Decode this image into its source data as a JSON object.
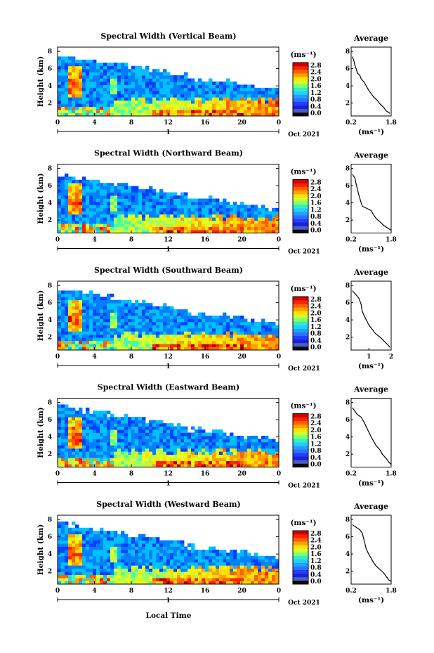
{
  "x_axis_label": "Local Time",
  "panels": [
    {
      "title": "Spectral Width (Vertical Beam)",
      "avg_xticks": [
        "0.2",
        "1.8"
      ],
      "avg_xrange": [
        0.2,
        1.8
      ],
      "avg_profile": [
        [
          0.25,
          7.4
        ],
        [
          0.3,
          7.0
        ],
        [
          0.35,
          6.4
        ],
        [
          0.4,
          6.0
        ],
        [
          0.45,
          5.5
        ],
        [
          0.55,
          5.2
        ],
        [
          0.6,
          4.8
        ],
        [
          0.7,
          4.5
        ],
        [
          0.8,
          4.0
        ],
        [
          0.9,
          3.5
        ],
        [
          1.0,
          3.1
        ],
        [
          1.1,
          2.7
        ],
        [
          1.25,
          2.3
        ],
        [
          1.35,
          1.9
        ],
        [
          1.5,
          1.5
        ],
        [
          1.6,
          1.1
        ],
        [
          1.75,
          0.8
        ]
      ]
    },
    {
      "title": "Spectral Width (Northward Beam)",
      "avg_xticks": [
        "0.2",
        "1.8"
      ],
      "avg_xrange": [
        0.2,
        1.8
      ],
      "avg_profile": [
        [
          0.25,
          7.3
        ],
        [
          0.35,
          6.9
        ],
        [
          0.4,
          6.2
        ],
        [
          0.45,
          5.6
        ],
        [
          0.5,
          5.0
        ],
        [
          0.55,
          4.5
        ],
        [
          0.6,
          4.0
        ],
        [
          0.65,
          3.6
        ],
        [
          0.8,
          3.4
        ],
        [
          1.0,
          3.1
        ],
        [
          1.1,
          2.6
        ],
        [
          1.2,
          2.2
        ],
        [
          1.35,
          1.8
        ],
        [
          1.5,
          1.4
        ],
        [
          1.7,
          1.0
        ],
        [
          1.8,
          0.8
        ]
      ]
    },
    {
      "title": "Spectral Width (Southward Beam)",
      "avg_xticks": [
        "1",
        "2"
      ],
      "avg_xrange": [
        0.2,
        2.0
      ],
      "avg_profile": [
        [
          0.25,
          7.4
        ],
        [
          0.4,
          7.0
        ],
        [
          0.55,
          6.5
        ],
        [
          0.65,
          5.8
        ],
        [
          0.7,
          5.0
        ],
        [
          0.8,
          4.4
        ],
        [
          0.9,
          3.9
        ],
        [
          1.0,
          3.4
        ],
        [
          1.15,
          2.9
        ],
        [
          1.3,
          2.4
        ],
        [
          1.5,
          2.0
        ],
        [
          1.7,
          1.5
        ],
        [
          1.85,
          1.1
        ],
        [
          1.95,
          0.8
        ]
      ]
    },
    {
      "title": "Spectral Width (Eastward Beam)",
      "avg_xticks": [
        "0.2",
        "1.8"
      ],
      "avg_xrange": [
        0.2,
        1.8
      ],
      "avg_profile": [
        [
          0.25,
          7.4
        ],
        [
          0.35,
          7.0
        ],
        [
          0.45,
          6.6
        ],
        [
          0.6,
          6.3
        ],
        [
          0.7,
          5.8
        ],
        [
          0.8,
          5.2
        ],
        [
          0.9,
          4.6
        ],
        [
          1.0,
          4.0
        ],
        [
          1.1,
          3.5
        ],
        [
          1.2,
          3.0
        ],
        [
          1.35,
          2.5
        ],
        [
          1.45,
          2.0
        ],
        [
          1.6,
          1.5
        ],
        [
          1.7,
          1.1
        ],
        [
          1.8,
          0.8
        ]
      ]
    },
    {
      "title": "Spectral Width (Westward Beam)",
      "avg_xticks": [
        "0.2",
        "1.8"
      ],
      "avg_xrange": [
        0.2,
        1.8
      ],
      "avg_profile": [
        [
          0.25,
          7.4
        ],
        [
          0.4,
          7.1
        ],
        [
          0.55,
          6.8
        ],
        [
          0.65,
          6.4
        ],
        [
          0.7,
          5.8
        ],
        [
          0.75,
          5.2
        ],
        [
          0.8,
          4.6
        ],
        [
          0.9,
          4.0
        ],
        [
          1.0,
          3.5
        ],
        [
          1.1,
          3.0
        ],
        [
          1.2,
          2.6
        ],
        [
          1.35,
          2.2
        ],
        [
          1.5,
          1.8
        ],
        [
          1.6,
          1.4
        ],
        [
          1.7,
          1.0
        ],
        [
          1.8,
          0.8
        ]
      ]
    }
  ],
  "colorbar": {
    "unit_label": "(ms⁻¹)",
    "ticks": [
      "2.8",
      "2.4",
      "2.0",
      "1.6",
      "1.2",
      "0.8",
      "0.4",
      "0.0"
    ]
  },
  "colorbar_ticks_by_panel": [
    [
      "2.8",
      "2.4",
      "2.0",
      "1.6",
      "1.2",
      "0.8",
      "0.4",
      "0.0"
    ],
    [
      "2.8",
      "2.4",
      "2.0",
      "1.6",
      "1.2",
      "0.8",
      "0.4",
      "0.0"
    ],
    [
      "2.8",
      "2.4",
      "2.0",
      "1.6",
      "1.2",
      "0.8",
      "0.4",
      "0.0"
    ],
    [
      "2.8",
      "2.4",
      "2.0",
      "1.6",
      "1.2",
      "0.8",
      "0.4",
      "0.0"
    ],
    [
      "2.8",
      "2.4",
      "2.0",
      "1.6",
      "1.2",
      "0.8",
      "0.4",
      "0.0"
    ]
  ],
  "main_xticks": [
    "0",
    "4",
    "8",
    "12",
    "16",
    "20",
    "0"
  ],
  "date_day_label": "1",
  "date_label": "Oct 2021",
  "y_axis_label": "Height (km)",
  "yticks": [
    "8",
    "6",
    "4",
    "2"
  ],
  "avg_title": "Average",
  "avg_xlabel": "(ms⁻¹)",
  "colors": {
    "colormap": [
      "#000080",
      "#0000d0",
      "#0040ff",
      "#0080ff",
      "#00c0ff",
      "#20e0e0",
      "#40ffb0",
      "#a0ff60",
      "#e0ff20",
      "#ffe000",
      "#ffa000",
      "#ff6000",
      "#ff2000",
      "#c00000"
    ],
    "cb_segments": [
      "#0a0a0a",
      "#4a5fc0",
      "#1f1fd8",
      "#2040ff",
      "#3070ff",
      "#20a0ff",
      "#20d0ff",
      "#30f0c0",
      "#80ff70",
      "#d0ff30",
      "#ffe000",
      "#ffa000",
      "#ff6000",
      "#ff2000",
      "#d00000"
    ]
  },
  "chart_data": {
    "type": "heatmap",
    "title": "Spectral Width",
    "xlabel": "Local Time",
    "ylabel": "Height (km)",
    "x_range_hours": [
      0,
      24
    ],
    "y_range_km": [
      0.5,
      8.5
    ],
    "value_range": [
      0.0,
      2.8
    ],
    "value_unit": "ms^-1",
    "series": [
      {
        "name": "Vertical Beam"
      },
      {
        "name": "Northward Beam"
      },
      {
        "name": "Southward Beam"
      },
      {
        "name": "Eastward Beam"
      },
      {
        "name": "Westward Beam"
      }
    ]
  }
}
